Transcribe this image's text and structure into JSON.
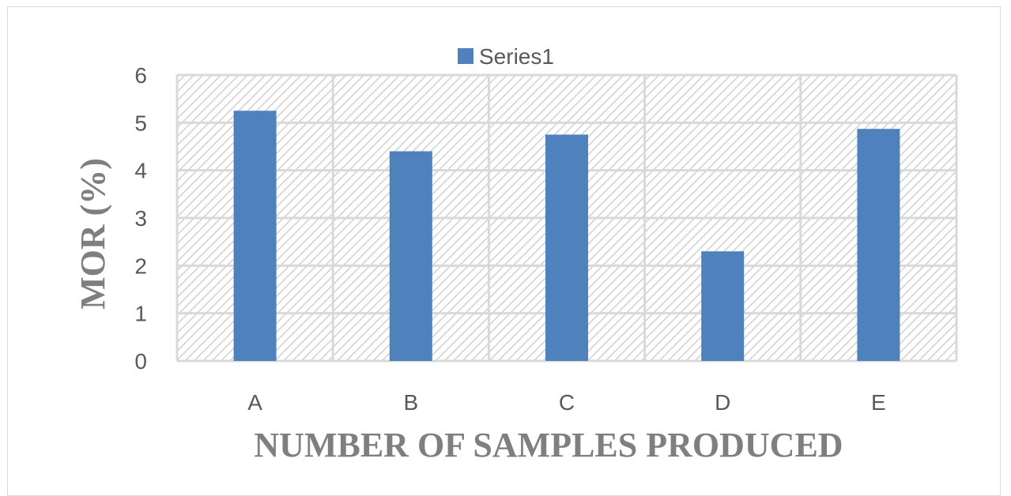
{
  "chart_data": {
    "type": "bar",
    "title": "",
    "xlabel": "NUMBER OF SAMPLES PRODUCED",
    "ylabel": "MOR (%)",
    "categories": [
      "A",
      "B",
      "C",
      "D",
      "E"
    ],
    "series": [
      {
        "name": "Series1",
        "values": [
          5.25,
          4.4,
          4.75,
          2.3,
          4.87
        ],
        "color": "#4f81bd"
      }
    ],
    "ylim": [
      0,
      6
    ],
    "yticks": [
      "0",
      "1",
      "2",
      "3",
      "4",
      "5",
      "6"
    ],
    "grid": true,
    "legend_position": "top",
    "plot_background": "hatched-gray"
  }
}
